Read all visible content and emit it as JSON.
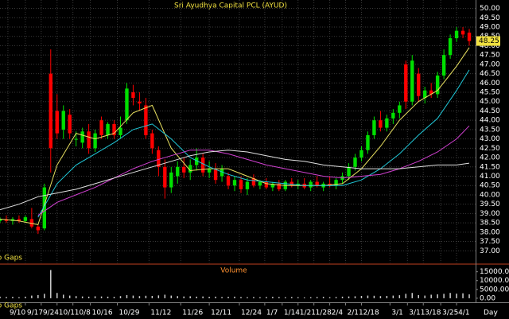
{
  "chart_data": {
    "type": "candlestick",
    "title": "Sri Ayudhya Capital  PCL (AYUD)",
    "volume_title": "Volume",
    "gap_label": "No Gaps",
    "x_label": "Day",
    "up_color": "#00e000",
    "down_color": "#ff0000",
    "volume_color": "#d0d0d0",
    "grid": true,
    "xlim": [
      0,
      150
    ],
    "ylim": [
      36.35,
      50.45
    ],
    "volume_ylim": [
      -1400,
      18000
    ],
    "x": [
      0,
      2,
      4,
      6,
      8,
      10,
      12,
      14,
      16,
      18,
      20,
      22,
      24,
      26,
      28,
      30,
      32,
      34,
      36,
      38,
      40,
      42,
      44,
      46,
      48,
      50,
      52,
      54,
      56,
      58,
      60,
      62,
      64,
      66,
      68,
      70,
      72,
      74,
      76,
      78,
      80,
      82,
      84,
      86,
      88,
      90,
      92,
      94,
      96,
      98,
      100,
      102,
      104,
      106,
      108,
      110,
      112,
      114,
      116,
      118,
      120,
      122,
      124,
      126,
      128,
      130,
      132,
      134,
      136,
      138,
      140,
      142,
      144,
      146,
      148
    ],
    "open": [
      38.6,
      38.7,
      38.6,
      38.7,
      38.6,
      38.7,
      38.3,
      38.2,
      46.5,
      44.5,
      43.5,
      44.3,
      43.0,
      42.8,
      43.4,
      42.5,
      44.0,
      43.2,
      43.8,
      43.2,
      44.0,
      45.5,
      45.0,
      44.8,
      43.3,
      42.4,
      41.5,
      40.4,
      41.0,
      41.5,
      41.2,
      41.6,
      42.0,
      41.2,
      41.4,
      41.0,
      41.0,
      40.5,
      40.8,
      40.3,
      40.9,
      40.5,
      40.7,
      40.4,
      40.6,
      40.3,
      40.7,
      40.5,
      40.6,
      40.4,
      40.7,
      40.4,
      40.6,
      40.5,
      40.8,
      41.0,
      41.5,
      42.0,
      42.4,
      43.2,
      44.0,
      43.6,
      44.1,
      44.4,
      47.0,
      45.0,
      46.5,
      45.2,
      45.6,
      45.4,
      46.4,
      47.5,
      48.4,
      48.8,
      48.7
    ],
    "high": [
      38.8,
      38.9,
      38.8,
      38.9,
      38.9,
      39.3,
      38.4,
      40.6,
      47.8,
      45.4,
      44.8,
      44.6,
      43.4,
      43.6,
      43.8,
      43.5,
      44.2,
      43.9,
      44.0,
      44.2,
      46.0,
      45.9,
      45.5,
      45.2,
      43.5,
      42.6,
      41.9,
      41.5,
      41.8,
      42.0,
      41.9,
      42.5,
      42.2,
      41.8,
      41.7,
      41.6,
      41.2,
      41.0,
      41.0,
      40.9,
      41.1,
      40.8,
      40.9,
      40.7,
      40.8,
      40.8,
      40.9,
      40.8,
      40.9,
      40.8,
      41.0,
      40.7,
      41.0,
      40.9,
      41.2,
      41.7,
      42.2,
      42.6,
      43.4,
      44.2,
      44.5,
      44.3,
      44.6,
      45.0,
      47.2,
      47.5,
      46.8,
      45.8,
      46.0,
      46.6,
      47.8,
      48.6,
      49.0,
      49.0,
      48.9
    ],
    "low": [
      38.5,
      38.5,
      38.4,
      38.5,
      38.5,
      38.2,
      37.9,
      38.1,
      41.2,
      43.0,
      43.0,
      43.0,
      42.6,
      42.5,
      42.2,
      42.3,
      43.0,
      43.0,
      43.0,
      43.0,
      43.8,
      44.8,
      44.5,
      43.0,
      42.2,
      41.0,
      39.8,
      40.1,
      40.6,
      40.9,
      40.8,
      41.3,
      41.0,
      40.9,
      40.6,
      40.7,
      40.3,
      40.2,
      40.1,
      40.0,
      40.4,
      40.3,
      40.3,
      40.2,
      40.2,
      40.2,
      40.4,
      40.3,
      40.3,
      40.2,
      40.4,
      40.2,
      40.4,
      40.3,
      40.6,
      40.8,
      41.3,
      41.8,
      42.2,
      43.0,
      43.4,
      43.4,
      43.8,
      44.1,
      44.6,
      44.8,
      45.0,
      44.9,
      45.2,
      45.2,
      46.2,
      47.3,
      48.2,
      48.4,
      48.0
    ],
    "close": [
      38.7,
      38.6,
      38.7,
      38.6,
      38.8,
      38.3,
      38.1,
      40.4,
      42.5,
      43.3,
      44.5,
      43.3,
      43.0,
      43.4,
      42.5,
      43.3,
      43.2,
      43.8,
      43.2,
      43.6,
      45.7,
      45.2,
      44.9,
      43.2,
      42.5,
      41.5,
      40.4,
      41.2,
      41.5,
      41.2,
      41.6,
      42.0,
      41.2,
      41.4,
      40.8,
      41.4,
      40.5,
      40.8,
      40.3,
      40.7,
      40.5,
      40.7,
      40.4,
      40.6,
      40.3,
      40.7,
      40.5,
      40.6,
      40.4,
      40.7,
      40.5,
      40.6,
      40.5,
      40.8,
      41.0,
      41.5,
      42.0,
      42.4,
      43.2,
      44.0,
      43.6,
      44.1,
      44.4,
      44.8,
      45.0,
      47.2,
      45.3,
      45.6,
      45.4,
      46.4,
      47.5,
      48.4,
      48.8,
      48.6,
      48.25
    ],
    "volume": [
      900,
      700,
      800,
      600,
      900,
      1500,
      1800,
      2500,
      16000,
      3000,
      2000,
      1500,
      1200,
      1000,
      900,
      1100,
      1000,
      900,
      800,
      1200,
      1800,
      1500,
      1200,
      1400,
      1300,
      1600,
      2000,
      1500,
      1200,
      1000,
      1100,
      900,
      1000,
      800,
      900,
      700,
      800,
      900,
      700,
      600,
      700,
      600,
      700,
      800,
      700,
      600,
      700,
      600,
      500,
      600,
      700,
      800,
      600,
      700,
      900,
      1000,
      1100,
      1300,
      1500,
      1400,
      1200,
      1300,
      1500,
      1700,
      2500,
      3000,
      1800,
      1500,
      2000,
      2200,
      2500,
      3000,
      2600,
      2800,
      2200
    ],
    "ma_x": [
      0,
      6,
      12,
      18,
      24,
      30,
      36,
      42,
      48,
      54,
      60,
      66,
      72,
      78,
      84,
      90,
      96,
      102,
      108,
      114,
      120,
      126,
      132,
      138,
      144,
      148
    ],
    "moving_averages": [
      {
        "color": "#e8e060",
        "values": [
          38.7,
          38.6,
          38.4,
          41.6,
          43.3,
          43.0,
          43.3,
          44.4,
          44.8,
          42.5,
          41.3,
          41.4,
          41.4,
          41.0,
          40.6,
          40.5,
          40.5,
          40.5,
          40.6,
          41.4,
          42.6,
          44.0,
          45.0,
          45.6,
          46.9,
          47.9
        ]
      },
      {
        "color": "#20c8d8",
        "values": [
          null,
          null,
          38.8,
          40.6,
          41.6,
          42.2,
          42.8,
          43.5,
          43.8,
          43.0,
          42.0,
          41.5,
          41.1,
          40.8,
          40.7,
          40.6,
          40.5,
          40.5,
          40.5,
          40.8,
          41.4,
          42.2,
          43.2,
          44.1,
          45.6,
          46.7
        ]
      },
      {
        "color": "#d040d0",
        "values": [
          null,
          null,
          38.9,
          39.6,
          40.0,
          40.4,
          40.9,
          41.4,
          41.8,
          42.1,
          42.4,
          42.4,
          42.2,
          41.9,
          41.6,
          41.4,
          41.2,
          41.0,
          40.9,
          41.0,
          41.1,
          41.4,
          41.8,
          42.3,
          43.0,
          43.7
        ]
      },
      {
        "color": "#e0e0e0",
        "values": [
          39.2,
          39.5,
          39.9,
          40.1,
          40.3,
          40.6,
          40.9,
          41.2,
          41.5,
          41.8,
          42.1,
          42.3,
          42.4,
          42.3,
          42.1,
          41.9,
          41.8,
          41.6,
          41.5,
          41.4,
          41.4,
          41.4,
          41.5,
          41.6,
          41.6,
          41.7
        ]
      }
    ],
    "yticks": [
      {
        "value": 37,
        "label": "37.00"
      },
      {
        "value": 37.5,
        "label": "37.50"
      },
      {
        "value": 38,
        "label": "38.00"
      },
      {
        "value": 38.5,
        "label": "38.50"
      },
      {
        "value": 39,
        "label": "39.00"
      },
      {
        "value": 39.5,
        "label": "39.50"
      },
      {
        "value": 40,
        "label": "40.00"
      },
      {
        "value": 40.5,
        "label": "40.50"
      },
      {
        "value": 41,
        "label": "41.00"
      },
      {
        "value": 41.5,
        "label": "41.50"
      },
      {
        "value": 42,
        "label": "42.00"
      },
      {
        "value": 42.5,
        "label": "42.50"
      },
      {
        "value": 43,
        "label": "43.00"
      },
      {
        "value": 43.5,
        "label": "43.50"
      },
      {
        "value": 44,
        "label": "44.00"
      },
      {
        "value": 44.5,
        "label": "44.50"
      },
      {
        "value": 45,
        "label": "45.00"
      },
      {
        "value": 45.5,
        "label": "45.50"
      },
      {
        "value": 46,
        "label": "46.00"
      },
      {
        "value": 46.5,
        "label": "46.50"
      },
      {
        "value": 47,
        "label": "47.00"
      },
      {
        "value": 47.5,
        "label": "47.50"
      },
      {
        "value": 48,
        "label": "48.00"
      },
      {
        "value": 48.5,
        "label": "48.50"
      },
      {
        "value": 49,
        "label": "49.00"
      },
      {
        "value": 49.5,
        "label": "49.50"
      },
      {
        "value": 50,
        "label": "50.00"
      }
    ],
    "volume_ticks": [
      {
        "value": 0,
        "label": "0.00"
      },
      {
        "value": 5000,
        "label": "5000.00"
      },
      {
        "value": 10000,
        "label": "10000.00"
      },
      {
        "value": 15000,
        "label": "15000.00"
      }
    ],
    "xticks": [
      {
        "value": 2.5,
        "label": "9/10"
      },
      {
        "value": 8,
        "label": "9/17"
      },
      {
        "value": 13,
        "label": "9/24"
      },
      {
        "value": 18,
        "label": "10/1"
      },
      {
        "value": 23,
        "label": "10/8"
      },
      {
        "value": 28.5,
        "label": "10/16"
      },
      {
        "value": 37,
        "label": "10/29"
      },
      {
        "value": 47,
        "label": "11/12"
      },
      {
        "value": 57,
        "label": "11/26"
      },
      {
        "value": 66,
        "label": "12/11"
      },
      {
        "value": 75.5,
        "label": "12/24"
      },
      {
        "value": 83.5,
        "label": "1/7"
      },
      {
        "value": 89,
        "label": "1/14"
      },
      {
        "value": 94,
        "label": "1/21"
      },
      {
        "value": 99,
        "label": "1/28"
      },
      {
        "value": 104,
        "label": "2/4"
      },
      {
        "value": 109,
        "label": "2/11"
      },
      {
        "value": 114,
        "label": "2/18"
      },
      {
        "value": 123,
        "label": "3/1"
      },
      {
        "value": 128.5,
        "label": "3/11"
      },
      {
        "value": 133.5,
        "label": "3/18"
      },
      {
        "value": 139,
        "label": "3/25"
      },
      {
        "value": 144,
        "label": "4/1"
      }
    ]
  }
}
